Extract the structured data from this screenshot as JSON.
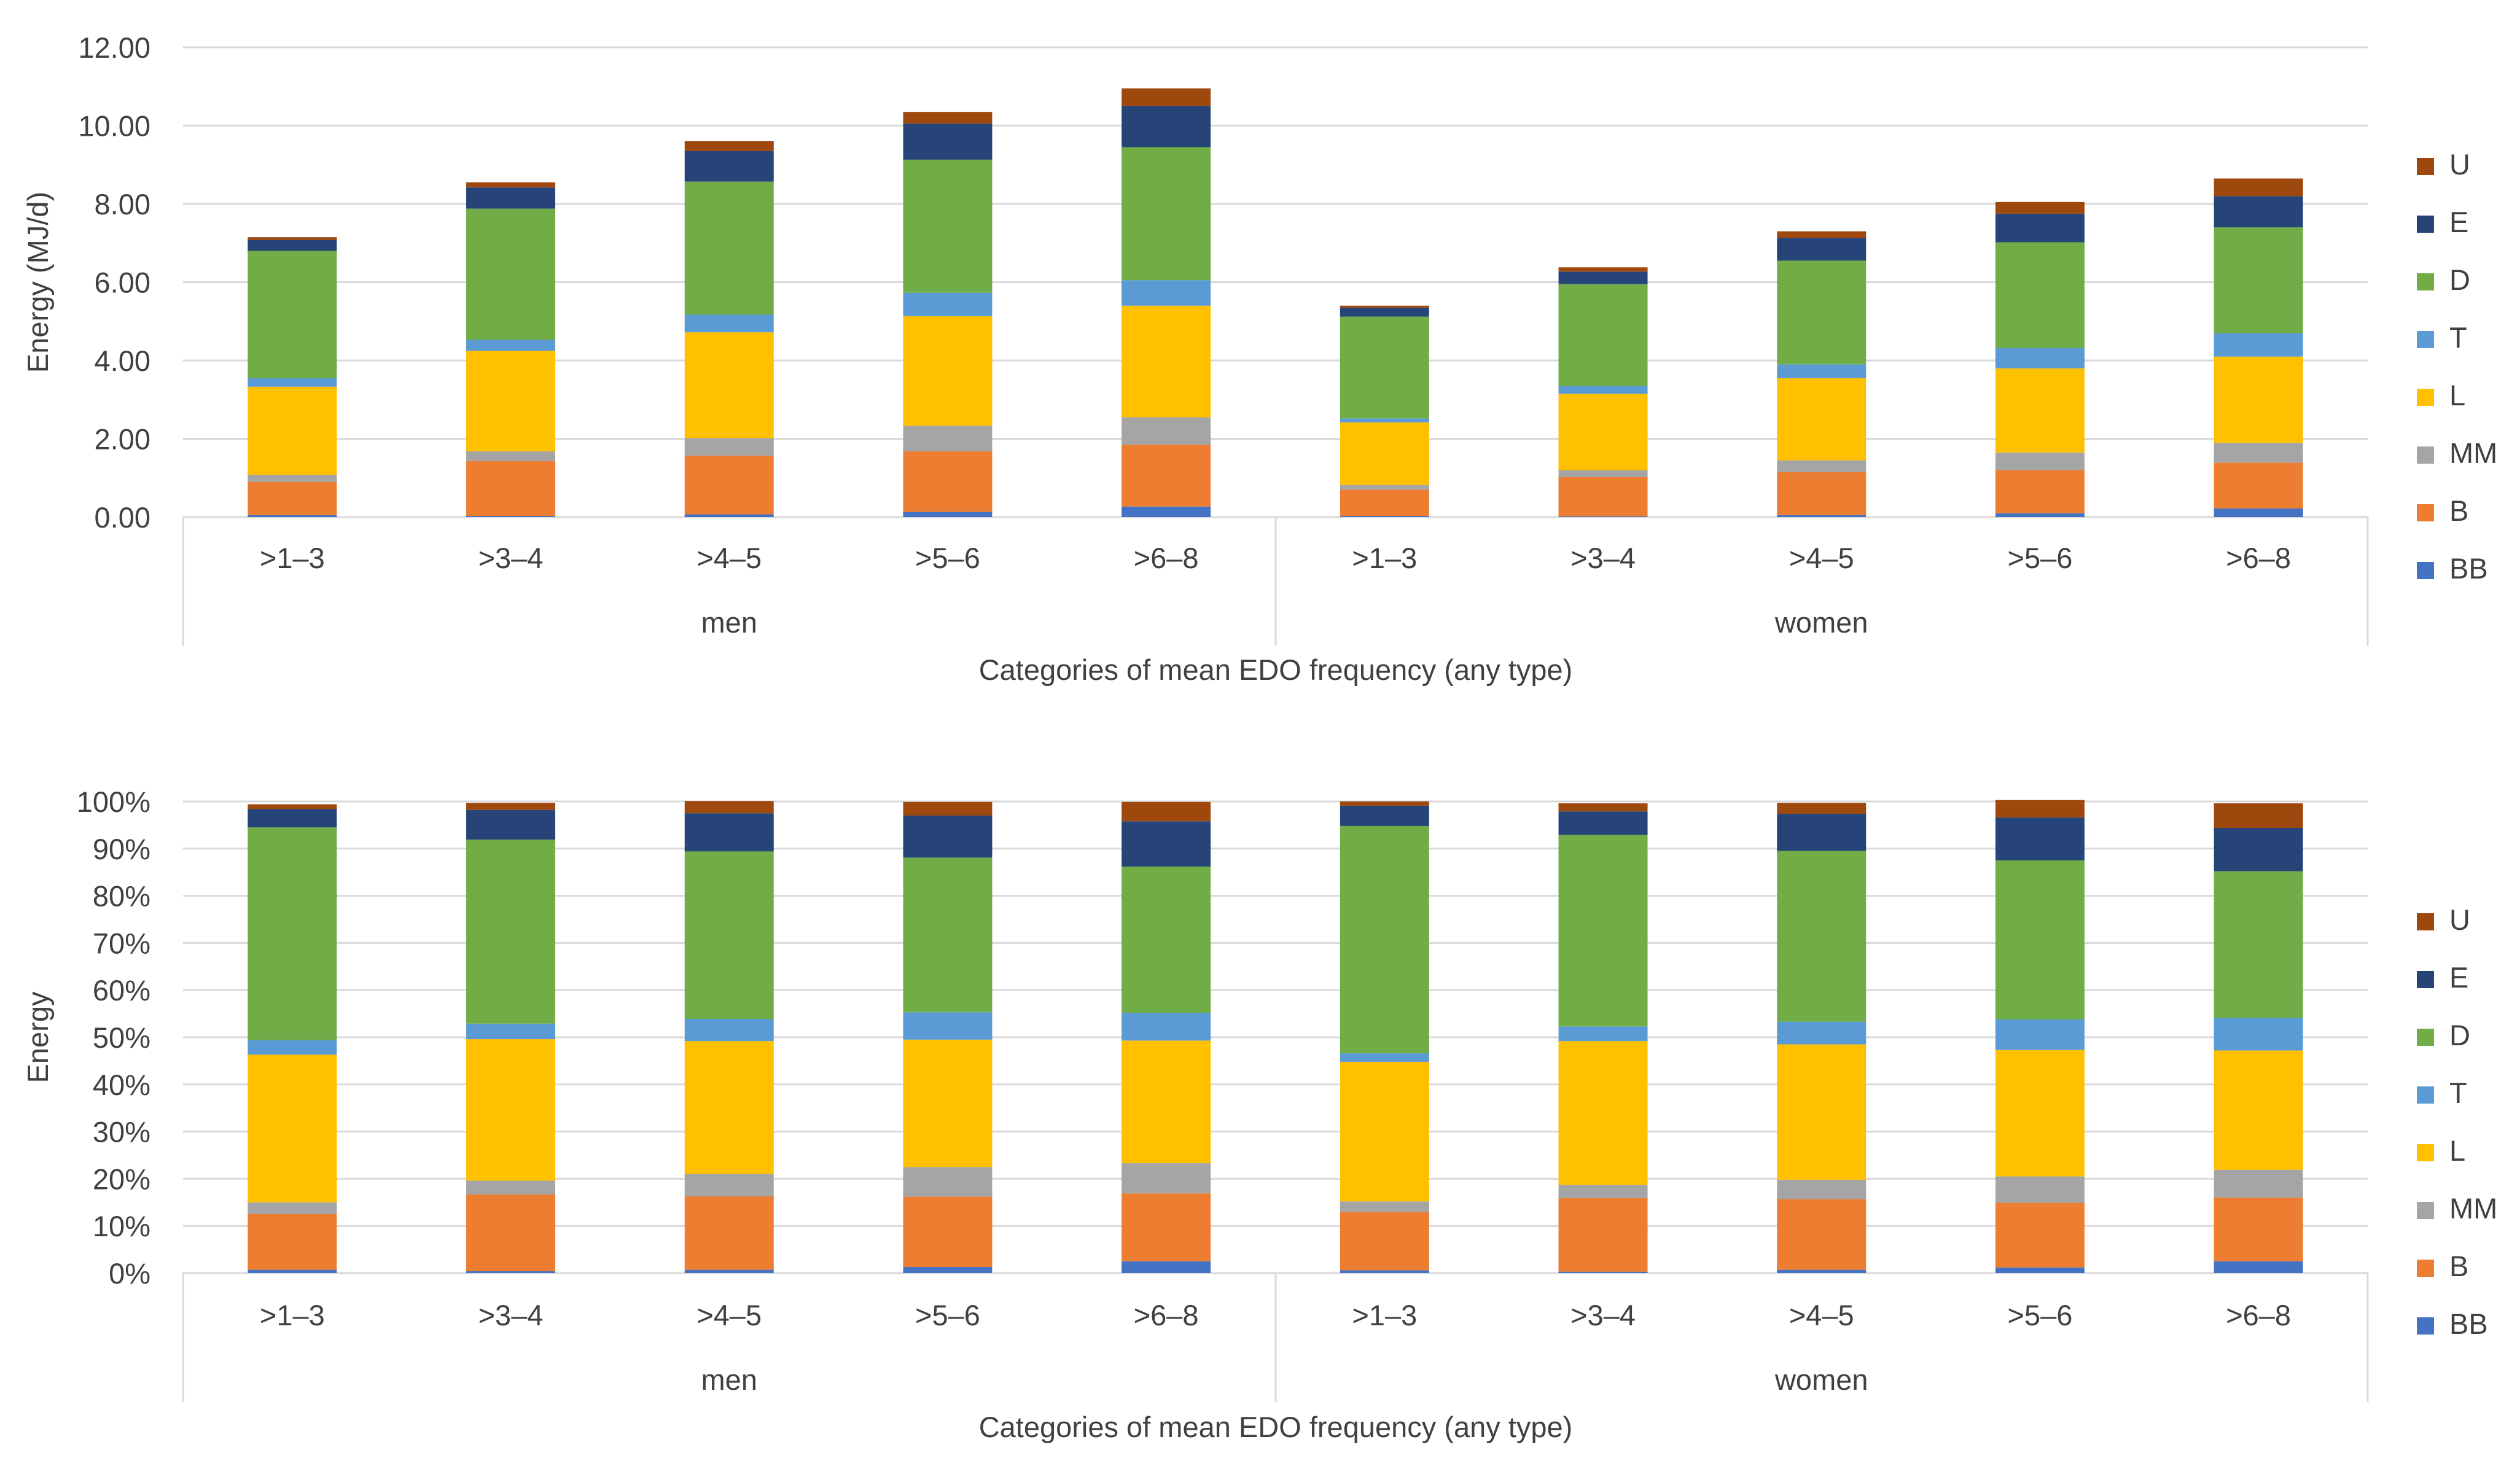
{
  "categories": [
    ">1–3",
    ">3–4",
    ">4–5",
    ">5–6",
    ">6–8",
    ">1–3",
    ">3–4",
    ">4–5",
    ">5–6",
    ">6–8"
  ],
  "groups": [
    {
      "label": "men",
      "start": 0,
      "end": 4
    },
    {
      "label": "women",
      "start": 5,
      "end": 9
    }
  ],
  "legend_order": [
    "U",
    "E",
    "D",
    "T",
    "L",
    "MM",
    "B",
    "BB"
  ],
  "colors": {
    "BB": "#4472C4",
    "B": "#ED7D31",
    "MM": "#A5A5A5",
    "L": "#FFC000",
    "T": "#5B9BD5",
    "D": "#70AD47",
    "E": "#264478",
    "U": "#9E480E",
    "grid": "#D9D9D9",
    "text": "#404040"
  },
  "chart_data": [
    {
      "type": "bar",
      "stacked": true,
      "title": "",
      "xlabel": "Categories of mean EDO frequency (any type)",
      "ylabel": "Energy (MJ/d)",
      "ylim": [
        0,
        12
      ],
      "yticks": [
        "0.00",
        "2.00",
        "4.00",
        "6.00",
        "8.00",
        "10.00",
        "12.00"
      ],
      "ytick_values": [
        0,
        2,
        4,
        6,
        8,
        10,
        12
      ],
      "grid": true,
      "legend": "right",
      "series": [
        {
          "name": "BB",
          "values": [
            0.05,
            0.03,
            0.07,
            0.13,
            0.27,
            0.03,
            0.02,
            0.05,
            0.1,
            0.22
          ]
        },
        {
          "name": "B",
          "values": [
            0.85,
            1.4,
            1.5,
            1.55,
            1.58,
            0.67,
            1.0,
            1.1,
            1.1,
            1.17
          ]
        },
        {
          "name": "MM",
          "values": [
            0.18,
            0.25,
            0.45,
            0.65,
            0.7,
            0.12,
            0.18,
            0.3,
            0.45,
            0.51
          ]
        },
        {
          "name": "L",
          "values": [
            2.25,
            2.57,
            2.7,
            2.8,
            2.85,
            1.6,
            1.95,
            2.1,
            2.15,
            2.2
          ]
        },
        {
          "name": "T",
          "values": [
            0.22,
            0.28,
            0.45,
            0.6,
            0.65,
            0.1,
            0.2,
            0.35,
            0.52,
            0.6
          ]
        },
        {
          "name": "D",
          "values": [
            3.25,
            3.35,
            3.4,
            3.4,
            3.4,
            2.6,
            2.6,
            2.65,
            2.7,
            2.7
          ]
        },
        {
          "name": "E",
          "values": [
            0.28,
            0.54,
            0.78,
            0.92,
            1.05,
            0.23,
            0.32,
            0.58,
            0.73,
            0.8
          ]
        },
        {
          "name": "U",
          "values": [
            0.07,
            0.13,
            0.25,
            0.3,
            0.45,
            0.05,
            0.11,
            0.17,
            0.3,
            0.45
          ]
        }
      ]
    },
    {
      "type": "bar",
      "stacked": true,
      "percent": true,
      "title": "",
      "xlabel": "Categories of mean EDO frequency (any type)",
      "ylabel": "Energy",
      "ylim": [
        0,
        100
      ],
      "yticks": [
        "0%",
        "10%",
        "20%",
        "30%",
        "40%",
        "50%",
        "60%",
        "70%",
        "80%",
        "90%",
        "100%"
      ],
      "ytick_values": [
        0,
        10,
        20,
        30,
        40,
        50,
        60,
        70,
        80,
        90,
        100
      ],
      "grid": true,
      "legend": "right",
      "series": [
        {
          "name": "BB",
          "values": [
            0.7,
            0.4,
            0.7,
            1.3,
            2.5,
            0.6,
            0.3,
            0.7,
            1.2,
            2.5
          ]
        },
        {
          "name": "B",
          "values": [
            11.8,
            16.3,
            15.6,
            14.9,
            14.4,
            12.4,
            15.6,
            15.0,
            13.7,
            13.5
          ]
        },
        {
          "name": "MM",
          "values": [
            2.5,
            2.9,
            4.7,
            6.3,
            6.4,
            2.2,
            2.8,
            4.1,
            5.6,
            5.9
          ]
        },
        {
          "name": "L",
          "values": [
            31.3,
            30.0,
            28.2,
            27.0,
            26.0,
            29.6,
            30.5,
            28.7,
            26.8,
            25.3
          ]
        },
        {
          "name": "T",
          "values": [
            3.1,
            3.3,
            4.7,
            5.8,
            5.9,
            1.8,
            3.1,
            4.8,
            6.5,
            6.9
          ]
        },
        {
          "name": "D",
          "values": [
            45.1,
            39.0,
            35.5,
            32.8,
            31.0,
            48.2,
            40.6,
            36.2,
            33.7,
            31.1
          ]
        },
        {
          "name": "E",
          "values": [
            3.9,
            6.3,
            8.1,
            8.9,
            9.6,
            4.3,
            5.0,
            7.9,
            9.1,
            9.2
          ]
        },
        {
          "name": "U",
          "values": [
            1.0,
            1.5,
            2.6,
            2.9,
            4.1,
            0.9,
            1.7,
            2.3,
            3.7,
            5.2
          ]
        }
      ]
    }
  ]
}
